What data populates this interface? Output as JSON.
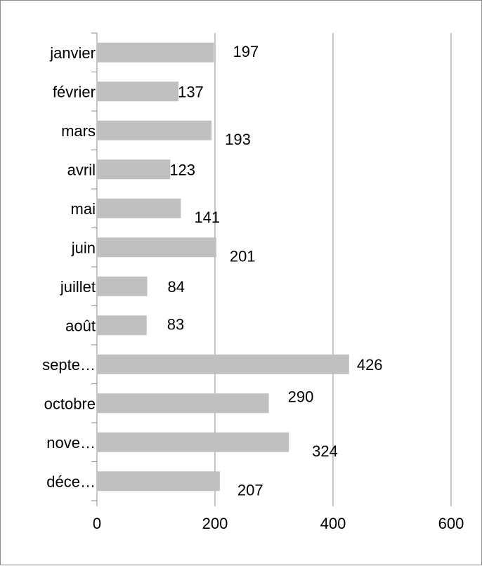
{
  "chart_data": {
    "type": "bar",
    "orientation": "horizontal",
    "categories": [
      "janvier",
      "février",
      "mars",
      "avril",
      "mai",
      "juin",
      "juillet",
      "août",
      "septe…",
      "octobre",
      "nove…",
      "déce…"
    ],
    "values": [
      197,
      137,
      193,
      123,
      141,
      201,
      84,
      83,
      426,
      290,
      324,
      207
    ],
    "xlim": [
      0,
      600
    ],
    "xticks": [
      "0",
      "200",
      "400",
      "600"
    ],
    "grid": true,
    "legend": "none",
    "bar_color": "#c0c0c0",
    "grid_color": "#8c8c8c",
    "text_color": "#000000"
  }
}
